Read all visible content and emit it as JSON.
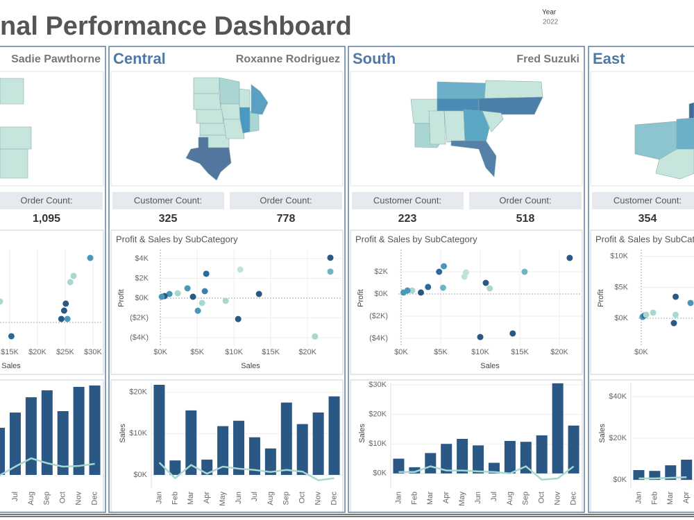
{
  "header": {
    "title": "nal Performance Dashboard",
    "filter_label": "Year",
    "filter_value": "2022"
  },
  "panels": [
    {
      "manager": "Sadie Pawthorne",
      "order_label": "Order Count:",
      "order_count": "1,095",
      "scatter": {
        "type": "scatter",
        "x_label": "Sales",
        "xlim": [
          -1250,
          31750
        ],
        "ylim": [
          -2190,
          6560
        ],
        "xticks": [
          {
            "value": 15000,
            "label": "$15K"
          },
          {
            "value": 20000,
            "label": "$20K"
          },
          {
            "value": 25000,
            "label": "$25K"
          },
          {
            "value": 30000,
            "label": "$30K"
          }
        ],
        "yticks": [
          {
            "value": 0,
            "label": ""
          }
        ],
        "points_x": [
          29500,
          26500,
          25900,
          25100,
          24800,
          24300,
          25400,
          15300,
          13250
        ],
        "points_y": [
          5810,
          4190,
          3630,
          1690,
          1060,
          310,
          310,
          -1250,
          1880
        ],
        "colors": [
          "#4a98b8",
          "#a6d8d0",
          "#a6d8d0",
          "#2a5783",
          "#2a5783",
          "#2a5783",
          "#4a98b8",
          "#2a6a96",
          "#a6d8d0"
        ]
      },
      "bars": {
        "type": "bar",
        "categories": [
          null,
          "Jul",
          "Aug",
          "Sep",
          "Oct",
          "Nov",
          "Dec"
        ],
        "values": [
          13600,
          18000,
          22400,
          24400,
          18400,
          25400,
          25800
        ],
        "line_values": [
          -200,
          2400,
          4800,
          3400,
          2400,
          2600,
          3200
        ],
        "ylim": [
          -4000,
          26600
        ],
        "yticks": [],
        "color": "#2a5783",
        "line_color": "#a6d8d0"
      }
    },
    {
      "region": "Central",
      "manager": "Roxanne Rodriguez",
      "customer_label": "Customer Count:",
      "customer_count": 325,
      "order_label": "Order Count:",
      "order_count": 778,
      "scatter": {
        "type": "scatter",
        "title": "Profit & Sales by SubCategory",
        "x_label": "Sales",
        "y_label": "Profit",
        "xlim": [
          -200,
          24700
        ],
        "ylim": [
          -4900,
          4900
        ],
        "xticks": [
          {
            "value": 0,
            "label": "$0K"
          },
          {
            "value": 5000,
            "label": "$5K"
          },
          {
            "value": 10000,
            "label": "$10K"
          },
          {
            "value": 15000,
            "label": "$15K"
          },
          {
            "value": 20000,
            "label": "$20K"
          }
        ],
        "yticks": [
          {
            "value": 4000,
            "label": "$4K"
          },
          {
            "value": 2000,
            "label": "$2K"
          },
          {
            "value": 0,
            "label": "$0K"
          },
          {
            "value": -2000,
            "label": "($2K)"
          },
          {
            "value": -4000,
            "label": "($4K)"
          }
        ],
        "points_x": [
          23100,
          23100,
          10850,
          6230,
          3680,
          6040,
          13400,
          1230,
          2360,
          570,
          190,
          4430,
          5660,
          8870,
          5090,
          10570,
          21000
        ],
        "points_y": [
          4080,
          2680,
          2890,
          2460,
          990,
          700,
          420,
          420,
          490,
          210,
          140,
          140,
          -490,
          -280,
          -1270,
          -2110,
          -3870
        ],
        "colors": [
          "#2a5783",
          "#6fb3c4",
          "#bfe3db",
          "#2a6a96",
          "#4a98b8",
          "#3b82ab",
          "#2a5783",
          "#4a98b8",
          "#a6d8d0",
          "#2a5783",
          "#4a98b8",
          "#2a5783",
          "#a6d8d0",
          "#a6d8d0",
          "#4a98b8",
          "#2a5783",
          "#a6d8d0"
        ]
      },
      "bars": {
        "type": "bar",
        "y_label": "Sales",
        "categories": [
          "Jan",
          "Feb",
          "Mar",
          "Apr",
          "May",
          "Jun",
          "Jul",
          "Aug",
          "Sep",
          "Oct",
          "Nov",
          "Dec"
        ],
        "values": [
          21800,
          3500,
          15600,
          3700,
          11800,
          13100,
          9100,
          6400,
          17500,
          12300,
          15100,
          19000
        ],
        "line_values": [
          3000,
          -800,
          2400,
          300,
          2000,
          1500,
          1200,
          700,
          1200,
          800,
          -1300,
          -800
        ],
        "ylim": [
          -3360,
          22300
        ],
        "yticks": [
          {
            "value": 0,
            "label": "$0K"
          },
          {
            "value": 10000,
            "label": "$10K"
          },
          {
            "value": 20000,
            "label": "$20K"
          }
        ],
        "color": "#2a5783",
        "line_color": "#a6d8d0"
      }
    },
    {
      "region": "South",
      "manager": "Fred Suzuki",
      "customer_label": "Customer Count:",
      "customer_count": 223,
      "order_label": "Order Count:",
      "order_count": 518,
      "scatter": {
        "type": "scatter",
        "title": "Profit & Sales by SubCategory",
        "x_label": "Sales",
        "y_label": "Profit",
        "xlim": [
          -350,
          22800
        ],
        "ylim": [
          -4750,
          4000
        ],
        "xticks": [
          {
            "value": 0,
            "label": "$0K"
          },
          {
            "value": 5000,
            "label": "$5K"
          },
          {
            "value": 10000,
            "label": "$10K"
          },
          {
            "value": 15000,
            "label": "$15K"
          },
          {
            "value": 20000,
            "label": "$20K"
          }
        ],
        "yticks": [
          {
            "value": 2000,
            "label": "$2K"
          },
          {
            "value": 0,
            "label": "$0K"
          },
          {
            "value": -2000,
            "label": "($2K)"
          },
          {
            "value": -4000,
            "label": "($4K)"
          }
        ],
        "points_x": [
          21300,
          15600,
          5400,
          4800,
          8200,
          8000,
          10700,
          11200,
          5300,
          3400,
          2500,
          1400,
          800,
          300,
          10000,
          14100
        ],
        "points_y": [
          3250,
          2000,
          2500,
          2000,
          1940,
          1560,
          1000,
          500,
          560,
          630,
          130,
          310,
          310,
          130,
          -3880,
          -3560
        ],
        "colors": [
          "#2a5783",
          "#6fb3c4",
          "#4a98b8",
          "#2a6a96",
          "#bfe3db",
          "#bfe3db",
          "#2a5783",
          "#a6d8d0",
          "#6fb3c4",
          "#2a6a96",
          "#2a5783",
          "#a6d8d0",
          "#4a98b8",
          "#4a98b8",
          "#2a5783",
          "#2a5783"
        ]
      },
      "bars": {
        "type": "bar",
        "y_label": "Sales",
        "categories": [
          "Jan",
          "Feb",
          "Mar",
          "Apr",
          "May",
          "Jun",
          "Jul",
          "Aug",
          "Sep",
          "Oct",
          "Nov",
          "Dec"
        ],
        "values": [
          5000,
          2100,
          6900,
          10000,
          11700,
          9500,
          3600,
          11000,
          10700,
          12900,
          30500,
          16200
        ],
        "line_values": [
          500,
          500,
          2400,
          1000,
          1000,
          700,
          500,
          0,
          2400,
          -2100,
          -1700,
          2400
        ],
        "ylim": [
          -5200,
          30700
        ],
        "yticks": [
          {
            "value": 0,
            "label": "$0K"
          },
          {
            "value": 10000,
            "label": "$10K"
          },
          {
            "value": 20000,
            "label": "$20K"
          },
          {
            "value": 30000,
            "label": "$30K"
          }
        ],
        "color": "#2a5783",
        "line_color": "#a6d8d0"
      }
    },
    {
      "region": "East",
      "customer_label": "Customer Count:",
      "customer_count": 354,
      "scatter": {
        "type": "scatter",
        "title": "Profit & Sales by SubCategory",
        "y_label": "Profit",
        "xlim": [
          -360,
          23600
        ],
        "ylim": [
          -4600,
          11100
        ],
        "xticks": [
          {
            "value": 0,
            "label": "$0K"
          }
        ],
        "yticks": [
          {
            "value": 10000,
            "label": "$10K"
          },
          {
            "value": 5000,
            "label": "$5K"
          },
          {
            "value": 0,
            "label": "$0K"
          }
        ],
        "points_x": [
          180,
          450,
          640,
          1550,
          4500,
          6450,
          4500,
          4270
        ],
        "points_y": [
          220,
          450,
          560,
          900,
          3480,
          2470,
          560,
          -790
        ],
        "colors": [
          "#4a98b8",
          "#2a6a96",
          "#a6d8d0",
          "#a6d8d0",
          "#2a5783",
          "#4a98b8",
          "#a6d8d0",
          "#2a5783"
        ]
      },
      "bars": {
        "type": "bar",
        "y_label": "Sales",
        "categories": [
          "Jan",
          "Feb",
          "Mar",
          "Apr"
        ],
        "values": [
          4700,
          4300,
          7000,
          9700
        ],
        "line_values": [
          700,
          700,
          1000,
          1300
        ],
        "ylim": [
          -4300,
          46700
        ],
        "yticks": [
          {
            "value": 0,
            "label": "$0K"
          },
          {
            "value": 20000,
            "label": "$20K"
          },
          {
            "value": 40000,
            "label": "$40K"
          }
        ],
        "color": "#2a5783",
        "line_color": "#a6d8d0"
      }
    }
  ]
}
